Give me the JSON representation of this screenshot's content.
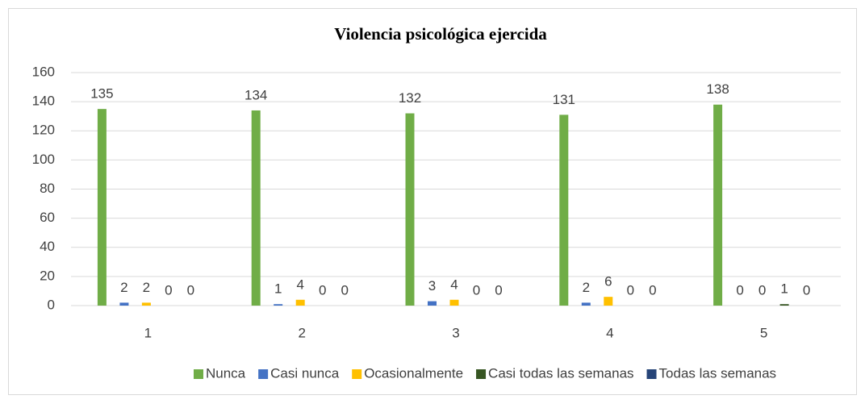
{
  "chart_data": {
    "type": "bar",
    "title": "Violencia psicológica ejercida",
    "categories": [
      "1",
      "2",
      "3",
      "4",
      "5"
    ],
    "series": [
      {
        "name": "Nunca",
        "color": "#70ad47",
        "values": [
          135,
          134,
          132,
          131,
          138
        ]
      },
      {
        "name": "Casi nunca",
        "color": "#4472c4",
        "values": [
          2,
          1,
          3,
          2,
          0
        ]
      },
      {
        "name": "Ocasionalmente",
        "color": "#ffc000",
        "values": [
          2,
          4,
          4,
          6,
          0
        ]
      },
      {
        "name": "Casi todas las semanas",
        "color": "#375623",
        "values": [
          0,
          0,
          0,
          0,
          1
        ]
      },
      {
        "name": "Todas las semanas",
        "color": "#264478",
        "values": [
          0,
          0,
          0,
          0,
          0
        ]
      }
    ],
    "ylim": [
      0,
      160
    ],
    "yticks": [
      0,
      20,
      40,
      60,
      80,
      100,
      120,
      140,
      160
    ],
    "grid": true,
    "legend": "bottom"
  }
}
